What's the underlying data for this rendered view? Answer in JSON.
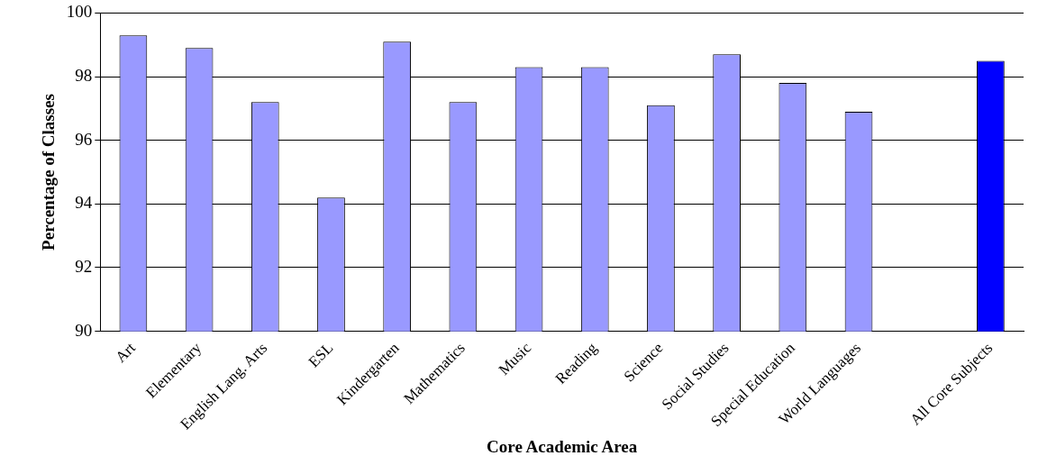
{
  "chart_data": {
    "type": "bar",
    "xlabel": "Core Academic Area",
    "ylabel": "Percentage of Classes",
    "categories": [
      "Art",
      "Elementary",
      "English Lang. Arts",
      "ESL",
      "Kindergarten",
      "Mathematics",
      "Music",
      "Reading",
      "Science",
      "Social Studies",
      "Special Education",
      "World Languages",
      null,
      "All Core Subjects"
    ],
    "values": [
      99.3,
      98.9,
      97.2,
      94.2,
      99.1,
      97.2,
      98.3,
      98.3,
      97.1,
      98.7,
      97.8,
      96.9,
      null,
      98.5
    ],
    "colors": [
      "#9999ff",
      "#9999ff",
      "#9999ff",
      "#9999ff",
      "#9999ff",
      "#9999ff",
      "#9999ff",
      "#9999ff",
      "#9999ff",
      "#9999ff",
      "#9999ff",
      "#9999ff",
      "#9999ff",
      "#0000ff"
    ],
    "ylim": [
      90,
      100
    ],
    "yticks": [
      90,
      92,
      94,
      96,
      98,
      100
    ],
    "grid": "y",
    "legend": false
  }
}
